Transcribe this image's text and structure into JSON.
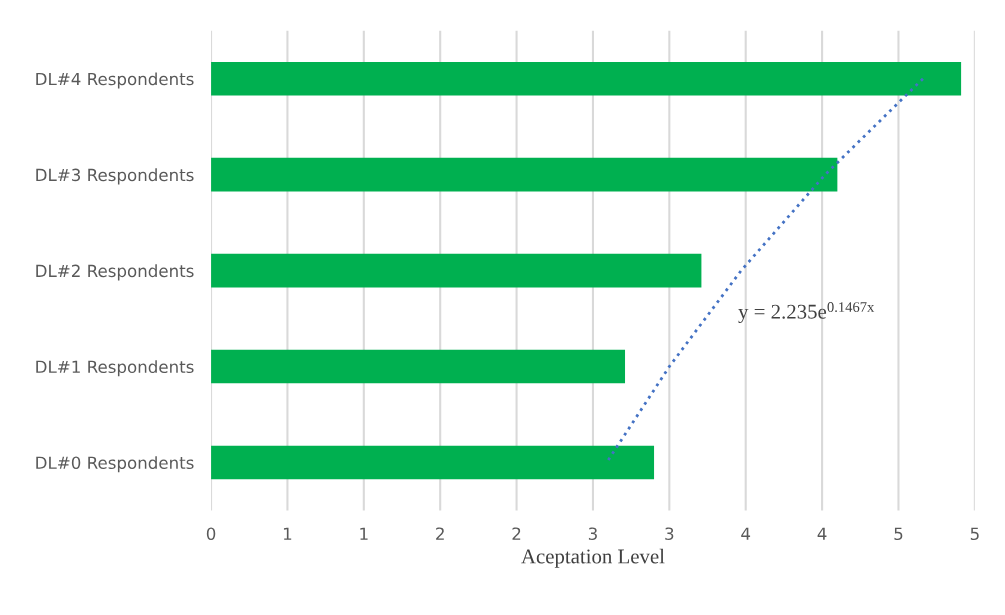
{
  "chart_data": {
    "type": "bar",
    "orientation": "horizontal",
    "xlabel": "Aceptation Level",
    "categories": [
      "DL#4 Respondents",
      "DL#3 Respondents",
      "DL#2 Respondents",
      "DL#1 Respondents",
      "DL#0 Respondents"
    ],
    "series": [
      {
        "color": "#00b050",
        "values": [
          4.91,
          4.1,
          3.21,
          2.71,
          2.9
        ]
      },
      {
        "type": "line",
        "color": "#4472c4",
        "line_style": "dotted",
        "values": [
          4.66,
          4.02,
          3.47,
          3.0,
          2.59
        ]
      }
    ],
    "xlim": [
      0,
      5
    ],
    "xticks": [
      0,
      {
        "value": 0.5,
        "label": "1"
      },
      1,
      {
        "value": 1.5,
        "label": "2"
      },
      2,
      {
        "value": 2.5,
        "label": "3"
      },
      3,
      {
        "value": 3.5,
        "label": "4"
      },
      4,
      {
        "value": 4.5,
        "label": "5"
      },
      5
    ],
    "grid": "x",
    "annotations": [
      "y = 2.235e$^{0.1467x}$"
    ]
  }
}
